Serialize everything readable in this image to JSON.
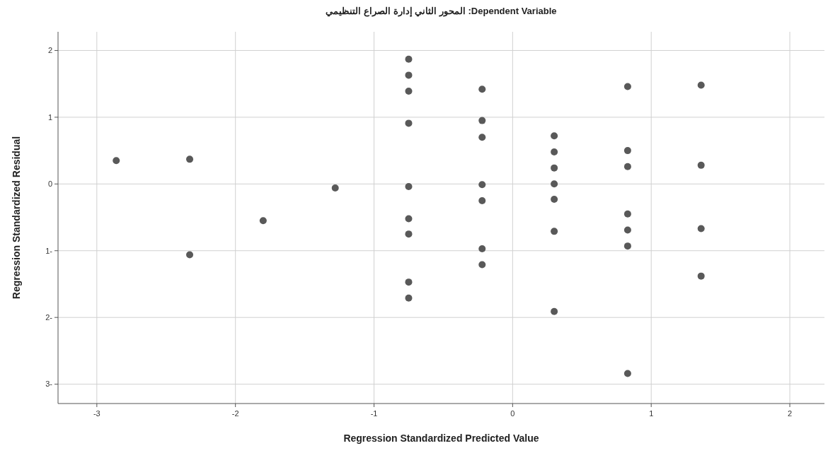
{
  "chart_data": {
    "type": "scatter",
    "title": "Dependent Variable: المحور الثاني إدارة الصراع التنظيمي",
    "xlabel": "Regression Standardized Predicted Value",
    "ylabel": "Regression Standardized Residual",
    "x": [
      -2.86,
      -2.33,
      -2.33,
      -1.8,
      -1.28,
      -0.75,
      -0.75,
      -0.75,
      -0.75,
      -0.75,
      -0.75,
      -0.75,
      -0.75,
      -0.75,
      -0.22,
      -0.22,
      -0.22,
      -0.22,
      -0.22,
      -0.22,
      -0.22,
      0.3,
      0.3,
      0.3,
      0.3,
      0.3,
      0.3,
      0.3,
      0.83,
      0.83,
      0.83,
      0.83,
      0.83,
      0.83,
      0.83,
      1.36,
      1.36,
      1.36,
      1.36
    ],
    "series": [
      {
        "color": "#595959",
        "values": [
          0.35,
          0.37,
          -1.06,
          -0.55,
          -0.06,
          1.87,
          1.63,
          1.39,
          0.91,
          -0.04,
          -0.52,
          -0.75,
          -1.47,
          -1.71,
          1.42,
          0.95,
          0.7,
          -0.01,
          -0.25,
          -0.97,
          -1.21,
          0.72,
          0.48,
          0.24,
          0.0,
          -0.23,
          -0.71,
          -1.91,
          1.46,
          0.5,
          0.26,
          -0.45,
          -0.69,
          -0.93,
          -2.84,
          1.48,
          0.28,
          -0.67,
          -1.38
        ]
      }
    ],
    "xlim": [
      -3.28,
      2.25
    ],
    "ylim": [
      -3.29,
      2.28
    ],
    "xticks": [
      -3,
      -2,
      -1,
      0,
      1,
      2
    ],
    "yticks": [
      {
        "value": -3,
        "label": "3-"
      },
      {
        "value": -2,
        "label": "2-"
      },
      {
        "value": -1,
        "label": "1-"
      },
      0,
      1,
      2
    ],
    "grid": true,
    "marker": "circle"
  }
}
